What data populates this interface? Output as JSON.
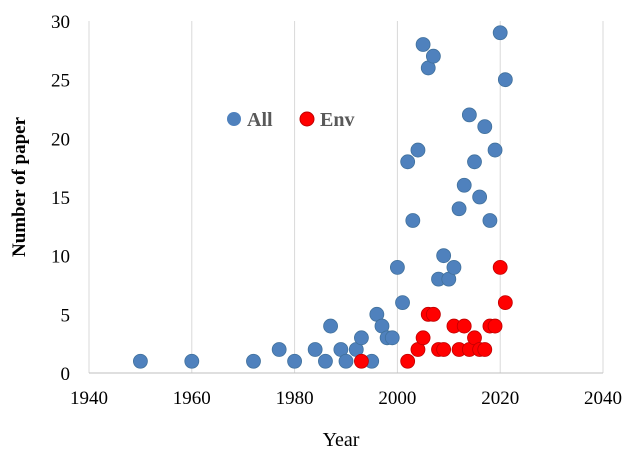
{
  "chart_data": {
    "type": "scatter",
    "title": "",
    "xlabel": "Year",
    "ylabel": "Number of  paper",
    "xlim": [
      1940,
      2040
    ],
    "ylim": [
      0,
      30
    ],
    "x_ticks": [
      1940,
      1960,
      1980,
      2000,
      2020,
      2040
    ],
    "y_ticks": [
      0,
      5,
      10,
      15,
      20,
      25,
      30
    ],
    "grid": "vertical",
    "legend_position": "upper-left inside plot",
    "series": [
      {
        "name": "All",
        "color": "#4f81bd",
        "points": [
          [
            1950,
            1
          ],
          [
            1960,
            1
          ],
          [
            1972,
            1
          ],
          [
            1977,
            2
          ],
          [
            1980,
            1
          ],
          [
            1984,
            2
          ],
          [
            1986,
            1
          ],
          [
            1987,
            4
          ],
          [
            1989,
            2
          ],
          [
            1990,
            1
          ],
          [
            1992,
            2
          ],
          [
            1993,
            3
          ],
          [
            1995,
            1
          ],
          [
            1996,
            5
          ],
          [
            1997,
            4
          ],
          [
            1998,
            3
          ],
          [
            1999,
            3
          ],
          [
            2000,
            9
          ],
          [
            2001,
            6
          ],
          [
            2002,
            18
          ],
          [
            2003,
            13
          ],
          [
            2004,
            19
          ],
          [
            2005,
            28
          ],
          [
            2006,
            26
          ],
          [
            2007,
            27
          ],
          [
            2008,
            8
          ],
          [
            2009,
            10
          ],
          [
            2010,
            8
          ],
          [
            2011,
            9
          ],
          [
            2012,
            14
          ],
          [
            2013,
            16
          ],
          [
            2014,
            22
          ],
          [
            2015,
            18
          ],
          [
            2016,
            15
          ],
          [
            2017,
            21
          ],
          [
            2018,
            13
          ],
          [
            2019,
            19
          ],
          [
            2020,
            29
          ],
          [
            2021,
            25
          ]
        ]
      },
      {
        "name": "Env",
        "color": "#ff0000",
        "points": [
          [
            1993,
            1
          ],
          [
            2002,
            1
          ],
          [
            2004,
            2
          ],
          [
            2005,
            3
          ],
          [
            2006,
            5
          ],
          [
            2007,
            5
          ],
          [
            2008,
            2
          ],
          [
            2009,
            2
          ],
          [
            2011,
            4
          ],
          [
            2012,
            2
          ],
          [
            2013,
            4
          ],
          [
            2014,
            2
          ],
          [
            2015,
            3
          ],
          [
            2016,
            2
          ],
          [
            2017,
            2
          ],
          [
            2018,
            4
          ],
          [
            2019,
            4
          ],
          [
            2020,
            9
          ],
          [
            2021,
            6
          ]
        ]
      }
    ]
  }
}
